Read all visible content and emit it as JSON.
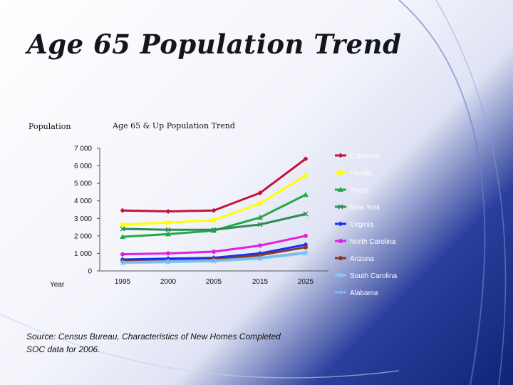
{
  "slide": {
    "title": "Age 65 Population Trend",
    "source_line1": "Source:  Census Bureau, Characteristics of New Homes Completed",
    "source_line2": "SOC data for 2006."
  },
  "colors": {
    "California": "#c0143c",
    "Florida": "#ffff00",
    "Texas": "#22aa44",
    "New York": "#2e8b57",
    "Virginia": "#1030ff",
    "North Carolina": "#e020e0",
    "Arizona": "#8a3a1a",
    "South Carolina": "#80d0ff",
    "Alabama": "#7ab8f0"
  },
  "chart_data": {
    "type": "line",
    "title": "Age 65 & Up Population Trend",
    "ylabel": "Population",
    "xlabel": "Year",
    "categories": [
      "1995",
      "2000",
      "2005",
      "2015",
      "2025"
    ],
    "ylim": [
      0,
      7000
    ],
    "yticks": [
      0,
      1000,
      2000,
      3000,
      4000,
      5000,
      6000,
      7000
    ],
    "ytick_labels": [
      "0",
      "1 000",
      "2 000",
      "3 000",
      "4 000",
      "5 000",
      "6 000",
      "7 000"
    ],
    "legend_position": "right",
    "series": [
      {
        "name": "California",
        "marker": "diamond",
        "values": [
          3450,
          3400,
          3450,
          4450,
          6400
        ]
      },
      {
        "name": "Florida",
        "marker": "square",
        "values": [
          2650,
          2750,
          2900,
          3850,
          5450
        ]
      },
      {
        "name": "Texas",
        "marker": "triangle",
        "values": [
          1950,
          2100,
          2300,
          3050,
          4350
        ]
      },
      {
        "name": "New York",
        "marker": "x",
        "values": [
          2400,
          2350,
          2350,
          2650,
          3250
        ]
      },
      {
        "name": "Virginia",
        "marker": "diamond",
        "values": [
          650,
          700,
          750,
          1000,
          1500
        ]
      },
      {
        "name": "North Carolina",
        "marker": "circle",
        "values": [
          950,
          1000,
          1100,
          1450,
          2000
        ]
      },
      {
        "name": "Arizona",
        "marker": "circle",
        "values": [
          550,
          600,
          650,
          900,
          1350
        ]
      },
      {
        "name": "South Carolina",
        "marker": "x",
        "values": [
          450,
          500,
          550,
          700,
          1000
        ]
      },
      {
        "name": "Alabama",
        "marker": "plus",
        "values": [
          500,
          550,
          600,
          750,
          1050
        ]
      }
    ]
  }
}
